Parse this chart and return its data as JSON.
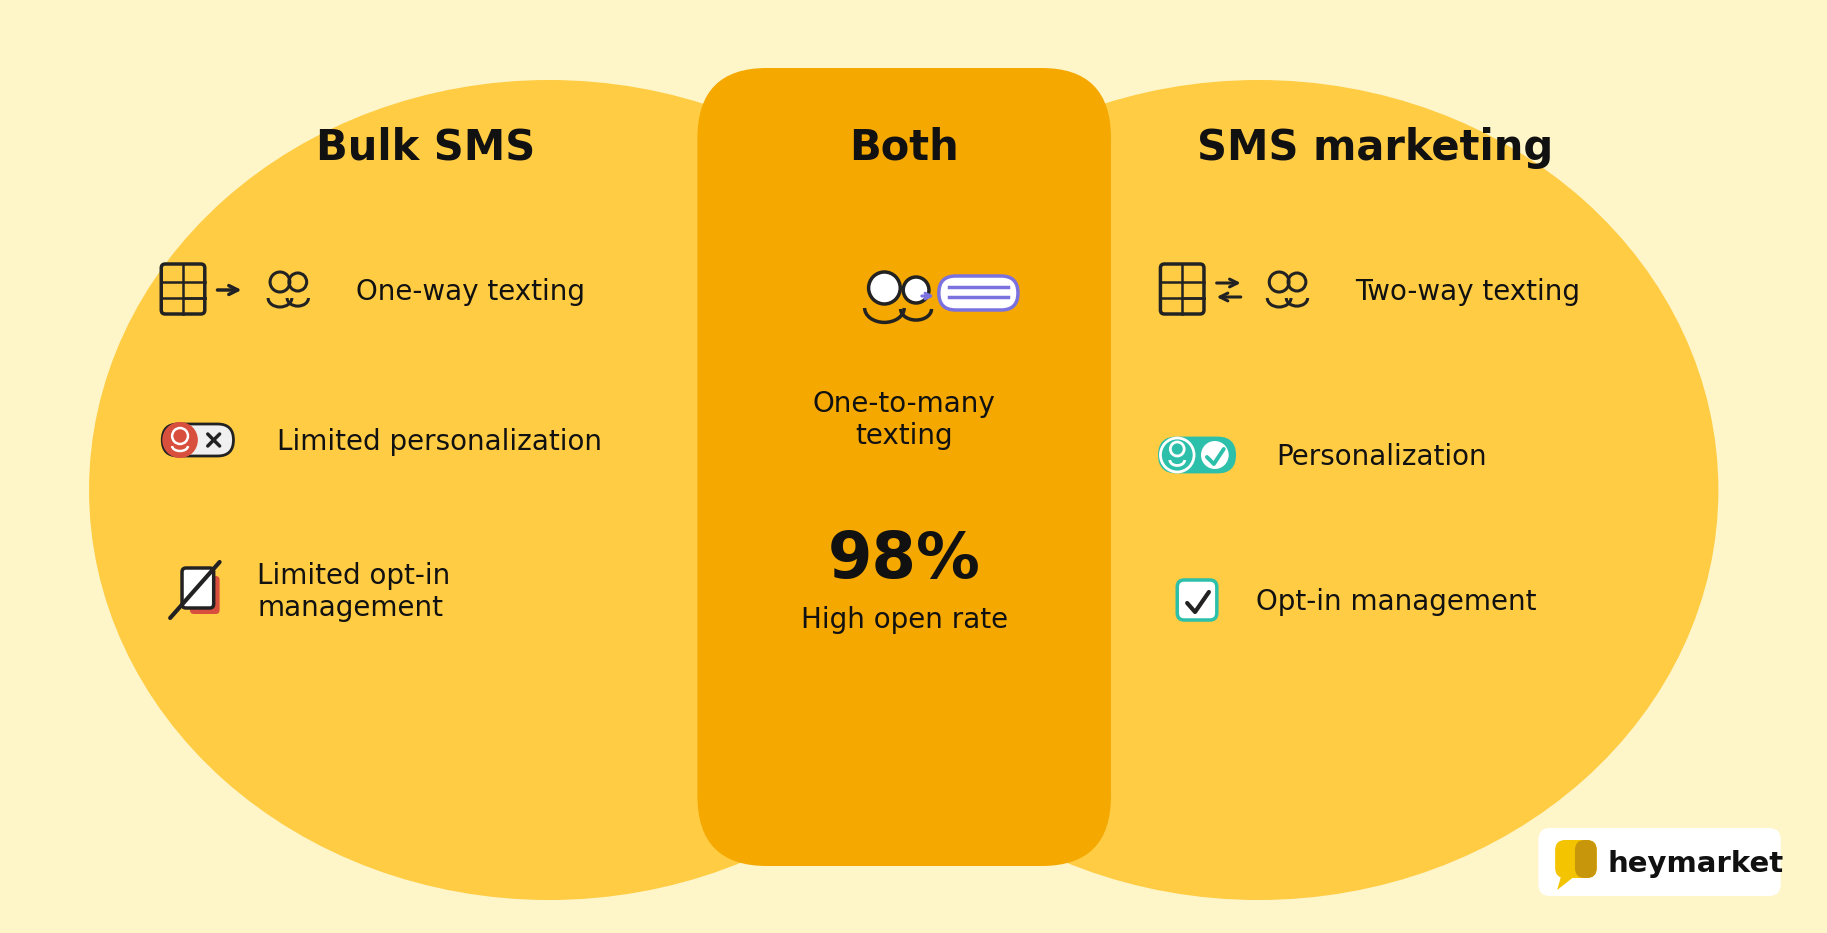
{
  "background_color": "#FEF5C8",
  "left_circle_color": "#FFCC44",
  "right_circle_color": "#FFCC44",
  "center_rect_color": "#F5A800",
  "title_both": "Both",
  "title_bulk": "Bulk SMS",
  "title_sms": "SMS marketing",
  "bulk_items": [
    "One-way texting",
    "Limited personalization",
    "Limited opt-in\nmanagement"
  ],
  "both_item1": "One-to-many\ntexting",
  "both_pct": "98%",
  "both_item2": "High open rate",
  "sms_items": [
    "Two-way texting",
    "Personalization",
    "Opt-in management"
  ],
  "text_color": "#111111",
  "title_fontsize": 30,
  "body_fontsize": 20,
  "logo_text": "heymarket",
  "icon_color": "#222222",
  "red_color": "#D94F3D",
  "teal_color": "#2CBFAA",
  "purple_color": "#7B72E0"
}
